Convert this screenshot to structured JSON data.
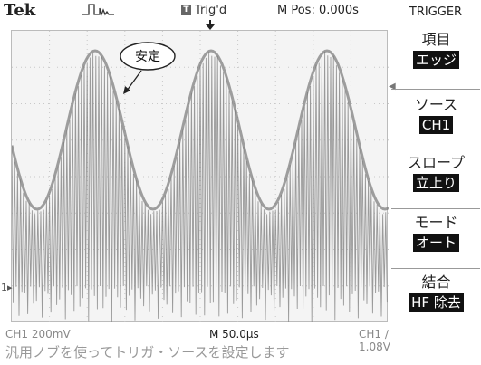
{
  "header": {
    "brand": "Tek",
    "trigger_status": "Trig'd",
    "trigger_box": "T",
    "mpos": "M Pos: 0.000s"
  },
  "annotation": "安定",
  "menu": {
    "title": "TRIGGER",
    "items": [
      {
        "label": "項目",
        "value": "エッジ"
      },
      {
        "label": "ソース",
        "value": "CH1"
      },
      {
        "label": "スロープ",
        "value": "立上り"
      },
      {
        "label": "モード",
        "value": "オート"
      },
      {
        "label": "結合",
        "value": "HF 除去"
      }
    ]
  },
  "status": {
    "channel": "CH1  200mV",
    "timebase": "M 50.0µs",
    "trigger_level": "CH1 ∕ 1.08V"
  },
  "help_text": "汎用ノブを使ってトリガ・ソースを設定します",
  "colors": {
    "trace": "#8a8a8a",
    "screen_bg": "#f4f4f4",
    "grid": "#c8c8c8"
  }
}
